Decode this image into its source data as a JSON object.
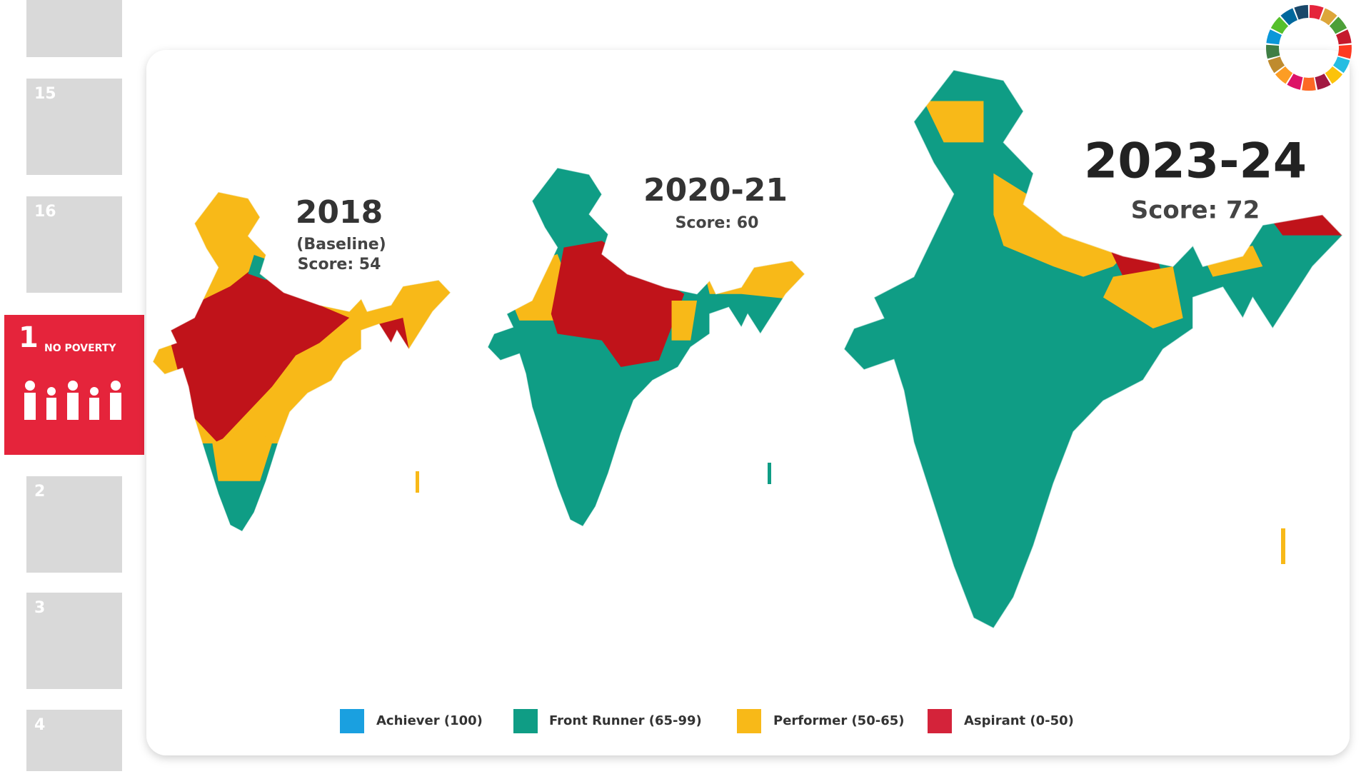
{
  "sidebar": {
    "tiles": [
      "15",
      "16",
      "1",
      "2",
      "3",
      "4"
    ],
    "active_label": "NO POVERTY"
  },
  "maps": [
    {
      "title": "2018",
      "subtitle": "(Baseline)",
      "score": "Score: 54"
    },
    {
      "title": "2020-21",
      "score": "Score: 60"
    },
    {
      "title": "2023-24",
      "score": "Score: 72"
    }
  ],
  "legend": [
    "Achiever (100)",
    "Front Runner (65-99)",
    "Performer (50-65)",
    "Aspirant (0-50)"
  ]
}
